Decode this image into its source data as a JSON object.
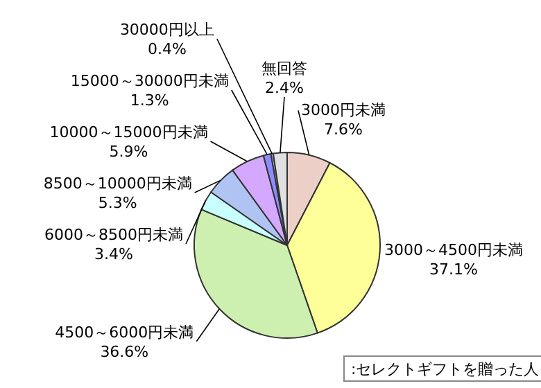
{
  "chart_data": {
    "type": "pie",
    "categories": [
      "3000円未満",
      "3000～4500円未満",
      "4500～6000円未満",
      "6000～8500円未満",
      "8500～10000円未満",
      "10000～15000円未満",
      "15000～30000円未満",
      "30000円以上",
      "無回答"
    ],
    "values": [
      7.6,
      37.1,
      36.6,
      3.4,
      5.3,
      5.9,
      1.3,
      0.4,
      2.4
    ],
    "value_labels": [
      "7.6%",
      "37.1%",
      "36.6%",
      "3.4%",
      "5.3%",
      "5.9%",
      "1.3%",
      "0.4%",
      "2.4%"
    ],
    "colors": [
      "#ecd0c8",
      "#ffff99",
      "#cdf0b0",
      "#c8ffff",
      "#b0c4f4",
      "#d4a8ff",
      "#8c8cff",
      "#b4b4ff",
      "#e0e0e0"
    ],
    "annotations": [
      ":セレクトギフトを贈った人"
    ]
  }
}
